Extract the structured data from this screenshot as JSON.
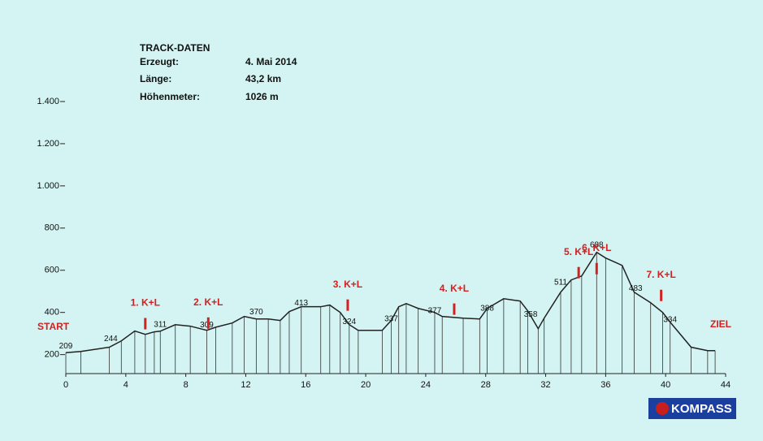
{
  "info": {
    "title": "TRACK-DATEN",
    "rows": [
      [
        "Erzeugt:",
        "4. Mai 2014"
      ],
      [
        "Länge:",
        "43,2 km"
      ],
      [
        "Höhenmeter:",
        "1026 m"
      ]
    ]
  },
  "logo": "KOMPASS",
  "chart_data": {
    "type": "line",
    "start_label": "START",
    "finish_label": "ZIEL",
    "color": "#222222",
    "x": [
      0,
      1.0,
      2.9,
      3.7,
      4.6,
      5.3,
      5.9,
      6.3,
      7.3,
      8.3,
      9.4,
      10.0,
      11.1,
      11.9,
      12.7,
      13.5,
      14.3,
      14.9,
      15.7,
      17.0,
      17.6,
      18.3,
      18.9,
      19.5,
      21.1,
      21.7,
      22.2,
      22.7,
      23.5,
      24.6,
      25.1,
      26.5,
      27.6,
      28.1,
      29.2,
      30.3,
      30.8,
      31.5,
      31.9,
      33.0,
      33.7,
      34.4,
      35.4,
      36.0,
      37.1,
      37.9,
      39.0,
      39.8,
      40.3,
      41.7,
      42.8,
      43.3
    ],
    "values": [
      209,
      215,
      235,
      265,
      312,
      296,
      308,
      311,
      342,
      335,
      315,
      330,
      350,
      381,
      369,
      369,
      362,
      404,
      427,
      427,
      435,
      400,
      342,
      315,
      315,
      362,
      427,
      442,
      419,
      400,
      381,
      373,
      369,
      419,
      465,
      454,
      408,
      323,
      373,
      496,
      554,
      573,
      685,
      658,
      623,
      496,
      446,
      400,
      354,
      235,
      219,
      219
    ],
    "spot_heights": {
      "x": [
        0,
        3.0,
        6.3,
        9.4,
        12.7,
        15.7,
        18.9,
        21.7,
        24.6,
        28.1,
        31.0,
        33.0,
        35.4,
        38.0,
        40.3
      ],
      "values": [
        209,
        244,
        311,
        309,
        370,
        413,
        324,
        337,
        377,
        388,
        358,
        511,
        688,
        483,
        334
      ]
    },
    "stations": {
      "labels": [
        "1. K+L",
        "2. K+L",
        "3. K+L",
        "4. K+L",
        "5. K+L",
        "6. K+L",
        "7. K+L"
      ],
      "x": [
        5.3,
        9.5,
        18.8,
        25.9,
        34.2,
        35.4,
        39.7
      ]
    },
    "xlim": [
      0,
      44
    ],
    "ylim": [
      110,
      1400
    ],
    "xticks": [
      0,
      4,
      8,
      12,
      16,
      20,
      24,
      28,
      32,
      36,
      40,
      44
    ],
    "yticks": [
      200,
      400,
      600,
      800,
      {
        "value": 1000,
        "label": "1.000"
      },
      {
        "value": 1200,
        "label": "1.200"
      },
      {
        "value": 1400,
        "label": "1.400"
      }
    ]
  }
}
